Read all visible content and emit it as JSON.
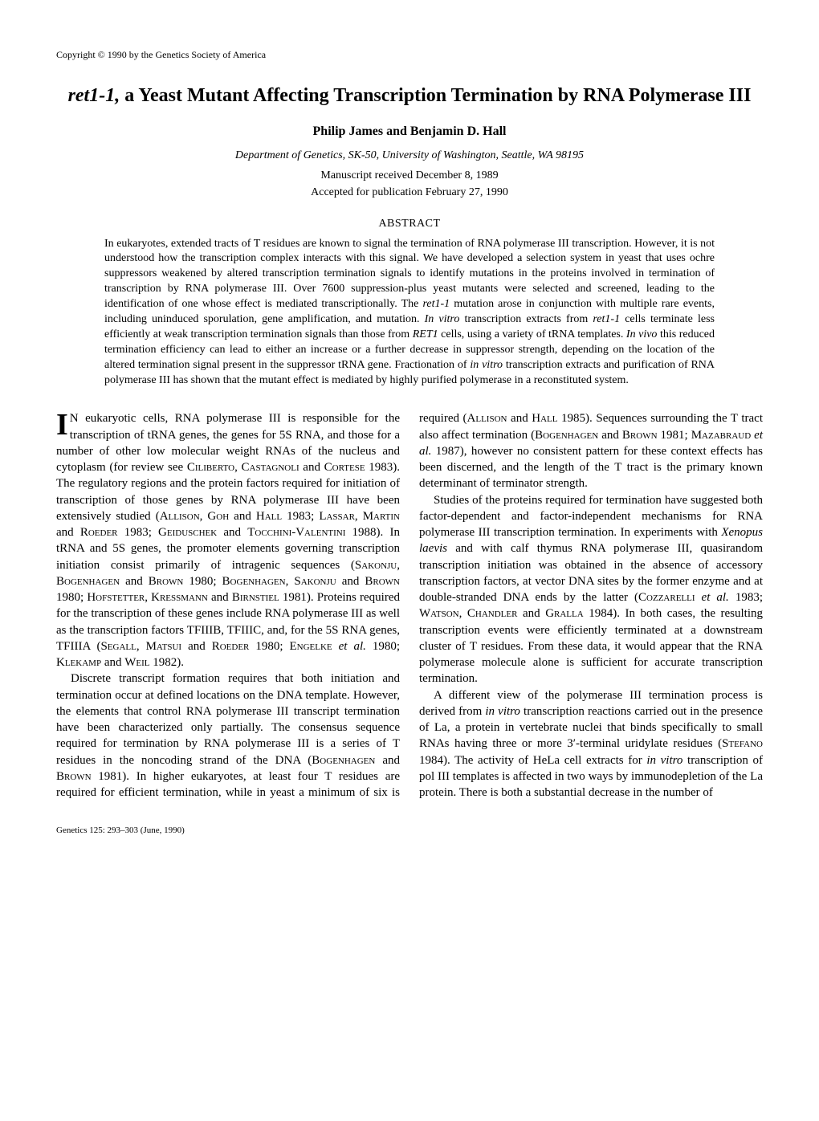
{
  "copyright": "Copyright © 1990 by the Genetics Society of America",
  "title_italic": "ret1-1,",
  "title_rest": " a Yeast Mutant Affecting Transcription Termination by RNA Polymerase III",
  "authors": "Philip James and Benjamin D. Hall",
  "affiliation": "Department of Genetics, SK-50, University of Washington, Seattle, WA 98195",
  "received": "Manuscript received December 8, 1989",
  "accepted": "Accepted for publication February 27, 1990",
  "abstract_heading": "ABSTRACT",
  "abstract_body": "In eukaryotes, extended tracts of T residues are known to signal the termination of RNA polymerase III transcription. However, it is not understood how the transcription complex interacts with this signal. We have developed a selection system in yeast that uses ochre suppressors weakened by altered transcription termination signals to identify mutations in the proteins involved in termination of transcription by RNA polymerase III. Over 7600 suppression-plus yeast mutants were selected and screened, leading to the identification of one whose effect is mediated transcriptionally. The ret1-1 mutation arose in conjunction with multiple rare events, including uninduced sporulation, gene amplification, and mutation. In vitro transcription extracts from ret1-1 cells terminate less efficiently at weak transcription termination signals than those from RET1 cells, using a variety of tRNA templates. In vivo this reduced termination efficiency can lead to either an increase or a further decrease in suppressor strength, depending on the location of the altered termination signal present in the suppressor tRNA gene. Fractionation of in vitro transcription extracts and purification of RNA polymerase III has shown that the mutant effect is mediated by highly purified polymerase in a reconstituted system.",
  "p1a": "N eukaryotic cells, RNA polymerase III is responsible for the transcription of tRNA genes, the genes for 5S RNA, and those for a number of other low molecular weight RNAs of the nucleus and cytoplasm (for review see ",
  "p1b": " 1983). The regulatory regions and the protein factors required for initiation of transcription of those genes by RNA polymerase III have been extensively studied (",
  "p1c": " 1983; ",
  "p1d": " 1983; ",
  "p1e": " 1988). In tRNA and 5S genes, the promoter elements governing transcription initiation consist primarily of intragenic sequences (",
  "p1f": " 1980; ",
  "p1g": " 1980; ",
  "p1h": " 1981). Proteins required for the transcription of these genes include RNA polymerase III as well as the transcription factors TFIIIB, TFIIIC, and, for the 5S RNA genes, TFIIIA (",
  "p1i": " 1980; ",
  "p1j": " 1980; ",
  "p1k": " 1982).",
  "ref1": "Ciliberto, Castagnoli",
  "ref1b": "Cortese",
  "ref2": "Allison, Goh",
  "ref2b": "Hall",
  "ref3": "Lassar, Martin",
  "ref3b": "Roeder",
  "ref4": "Geiduschek",
  "ref4b": "Tocchini-Valentini",
  "ref5": "Sakonju, Bogenhagen",
  "ref5b": "Brown",
  "ref6": "Bogenhagen, Sakonju",
  "ref6b": "Brown",
  "ref7": "Hofstetter, Kressmann",
  "ref7b": "Birnstiel",
  "ref8": "Segall, Matsui",
  "ref8b": "Roeder",
  "ref9": "Engelke",
  "ref9b": "et al.",
  "ref10": "Klekamp",
  "ref10b": "Weil",
  "p2a": "Discrete transcript formation requires that both initiation and termination occur at defined locations on the DNA template. However, the elements that control RNA polymerase III transcript termination have been characterized only partially. The consensus sequence required for termination by RNA polymerase III is a series of T residues in the noncoding strand of the DNA (",
  "p2b": " 1981). In higher eukaryotes, at least four T residues are required for efficient termination, while in yeast a min",
  "ref11": "Bogenhagen",
  "ref11b": "Brown",
  "p3a": "imum of six is required (",
  "p3b": " 1985). Sequences surrounding the T tract also affect termination (",
  "p3c": " 1981; ",
  "p3d": " 1987), however no consistent pattern for these context effects has been discerned, and the length of the T tract is the primary known determinant of terminator strength.",
  "ref12": "Allison",
  "ref12b": "Hall",
  "ref13": "Bogenhagen",
  "ref13b": "Brown",
  "ref14": "Mazabraud",
  "ref14b": "et al.",
  "p4a": "Studies of the proteins required for termination have suggested both factor-dependent and factor-independent mechanisms for RNA polymerase III transcription termination. In experiments with ",
  "p4a2": "Xenopus laevis",
  "p4b": " and with calf thymus RNA polymerase III, quasirandom transcription initiation was obtained in the absence of accessory transcription factors, at vector DNA sites by the former enzyme and at double-stranded DNA ends by the latter (",
  "p4c": " 1983; ",
  "p4d": " 1984). In both cases, the resulting transcription events were efficiently terminated at a downstream cluster of T residues. From these data, it would appear that the RNA polymerase molecule alone is sufficient for accurate transcription termination.",
  "ref15": "Cozzarelli",
  "ref15b": "et al.",
  "ref16": "Watson, Chandler",
  "ref16b": "Gralla",
  "p5a": "A different view of the polymerase III termination process is derived from ",
  "p5a2": "in vitro",
  "p5b": " transcription reactions carried out in the presence of La, a protein in vertebrate nuclei that binds specifically to small RNAs having three or more 3′-terminal uridylate residues (",
  "p5c": " 1984). The activity of HeLa cell extracts for ",
  "p5c2": "in vitro",
  "p5d": " transcription of pol III templates is affected in two ways by immunodepletion of the La protein. There is both a substantial decrease in the number of",
  "ref17": "Stefano",
  "footer": "Genetics 125: 293–303 (June, 1990)"
}
